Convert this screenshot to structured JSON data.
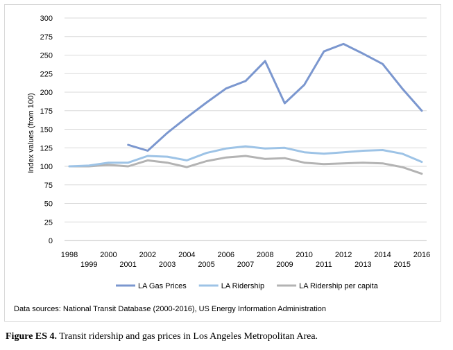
{
  "chart_data": {
    "type": "line",
    "ylabel": "Index values (from 100)",
    "xlabel": "",
    "ylim": [
      0,
      300
    ],
    "yticks": [
      0,
      25,
      50,
      75,
      100,
      125,
      150,
      175,
      200,
      225,
      250,
      275,
      300
    ],
    "x": [
      "1998",
      "1999",
      "2000",
      "2001",
      "2002",
      "2003",
      "2004",
      "2005",
      "2006",
      "2007",
      "2008",
      "2009",
      "2010",
      "2011",
      "2012",
      "2013",
      "2014",
      "2015",
      "2016"
    ],
    "grid": true,
    "legend_position": "bottom",
    "series": [
      {
        "name": "LA Gas Prices",
        "color": "#7b97cf",
        "values": [
          null,
          null,
          null,
          129,
          121,
          145,
          166,
          186,
          205,
          215,
          242,
          185,
          210,
          255,
          265,
          252,
          238,
          205,
          175
        ]
      },
      {
        "name": "LA Ridership",
        "color": "#9dc3e6",
        "values": [
          100,
          101,
          105,
          105,
          114,
          113,
          108,
          118,
          124,
          127,
          124,
          125,
          119,
          117,
          119,
          121,
          122,
          117,
          106
        ]
      },
      {
        "name": "LA Ridership per capita",
        "color": "#b3b3b3",
        "values": [
          100,
          100,
          102,
          100,
          108,
          105,
          99,
          107,
          112,
          114,
          110,
          111,
          105,
          103,
          104,
          105,
          104,
          99,
          90
        ]
      }
    ]
  },
  "source_note": "Data sources: National Transit Database (2000-2016), US Energy Information Administration",
  "caption": {
    "label": "Figure ES 4.",
    "text": " Transit ridership and gas prices in Los Angeles Metropolitan Area."
  }
}
